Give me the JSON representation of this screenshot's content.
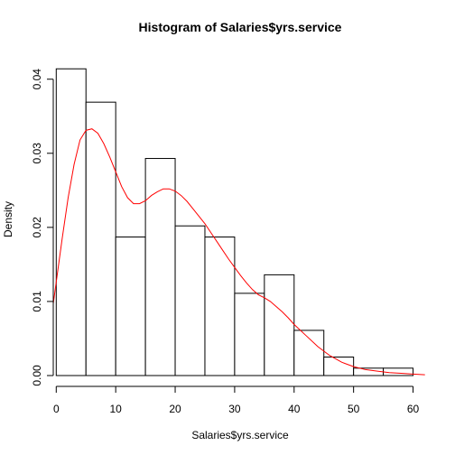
{
  "chart_data": {
    "type": "bar",
    "title": "Histogram of Salaries$yrs.service",
    "xlabel": "Salaries$yrs.service",
    "ylabel": "Density",
    "xlim": [
      -0.5,
      62.5
    ],
    "ylim": [
      0,
      0.0435
    ],
    "x_ticks": [
      0,
      10,
      20,
      30,
      40,
      50,
      60
    ],
    "x_tick_labels": [
      "0",
      "10",
      "20",
      "30",
      "40",
      "50",
      "60"
    ],
    "y_ticks": [
      0,
      0.01,
      0.02,
      0.03,
      0.04
    ],
    "y_tick_labels": [
      "0.00",
      "0.01",
      "0.02",
      "0.03",
      "0.04"
    ],
    "bins": [
      {
        "from": 0,
        "to": 5,
        "density": 0.0414
      },
      {
        "from": 5,
        "to": 10,
        "density": 0.0369
      },
      {
        "from": 10,
        "to": 15,
        "density": 0.0187
      },
      {
        "from": 15,
        "to": 20,
        "density": 0.0293
      },
      {
        "from": 20,
        "to": 25,
        "density": 0.0202
      },
      {
        "from": 25,
        "to": 30,
        "density": 0.0187
      },
      {
        "from": 30,
        "to": 35,
        "density": 0.0111
      },
      {
        "from": 35,
        "to": 40,
        "density": 0.0136
      },
      {
        "from": 40,
        "to": 45,
        "density": 0.0061
      },
      {
        "from": 45,
        "to": 50,
        "density": 0.0025
      },
      {
        "from": 50,
        "to": 55,
        "density": 0.001
      },
      {
        "from": 55,
        "to": 60,
        "density": 0.001
      }
    ],
    "density_curve": {
      "name": "kernel density",
      "color": "#ff0000",
      "x": [
        -0.5,
        1,
        2,
        3,
        4,
        5,
        6,
        7,
        8,
        9,
        10,
        11,
        12,
        13,
        14,
        15,
        16,
        17,
        18,
        19,
        20,
        21,
        22,
        23,
        24,
        25,
        26,
        27,
        28,
        29,
        30,
        31,
        32,
        33,
        34,
        35,
        36,
        37,
        38,
        39,
        40,
        42,
        44,
        46,
        48,
        50,
        52,
        54,
        56,
        58,
        60,
        62
      ],
      "y": [
        0.0097,
        0.0185,
        0.024,
        0.0285,
        0.0318,
        0.0331,
        0.0333,
        0.0327,
        0.0313,
        0.0295,
        0.0275,
        0.0255,
        0.024,
        0.0232,
        0.0232,
        0.0236,
        0.0243,
        0.0248,
        0.0252,
        0.0252,
        0.0249,
        0.0243,
        0.0235,
        0.0225,
        0.0215,
        0.0205,
        0.0193,
        0.0181,
        0.0169,
        0.0157,
        0.0146,
        0.0135,
        0.0125,
        0.0116,
        0.0109,
        0.0105,
        0.01,
        0.0093,
        0.0086,
        0.0078,
        0.0069,
        0.0054,
        0.0039,
        0.0027,
        0.0018,
        0.0012,
        0.0008,
        0.0006,
        0.0004,
        0.0003,
        0.0002,
        0.0001
      ]
    },
    "bar_fill": "#ffffff",
    "bar_stroke": "#000000",
    "grid": false
  }
}
